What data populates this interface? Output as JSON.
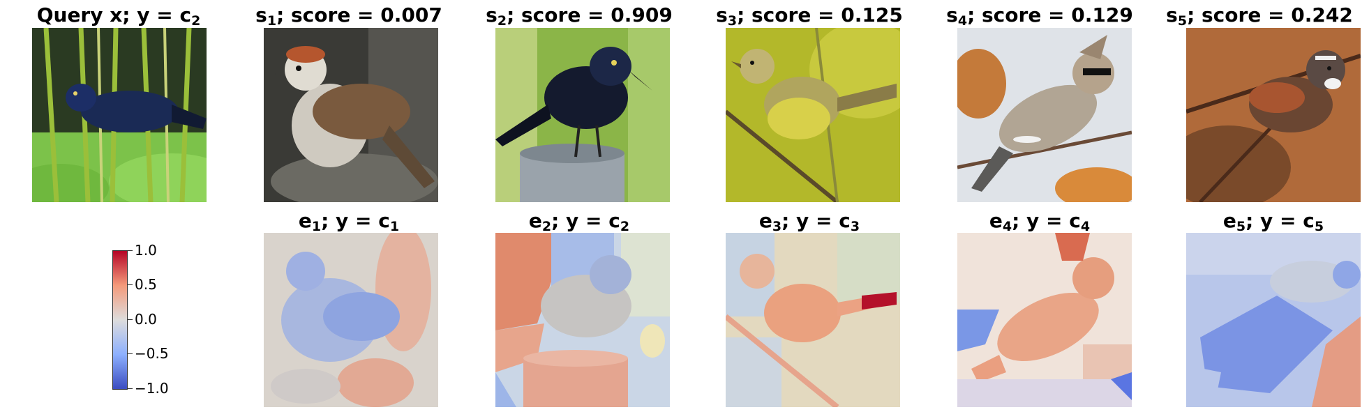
{
  "query": {
    "title_main": "Query x; y = c",
    "title_sub": "2"
  },
  "supports": [
    {
      "pre": "s",
      "sub": "1",
      "post": "; score = 0.007"
    },
    {
      "pre": "s",
      "sub": "2",
      "post": "; score = 0.909"
    },
    {
      "pre": "s",
      "sub": "3",
      "post": "; score = 0.125"
    },
    {
      "pre": "s",
      "sub": "4",
      "post": "; score = 0.129"
    },
    {
      "pre": "s",
      "sub": "5",
      "post": "; score = 0.242"
    }
  ],
  "explanations": [
    {
      "pre": "e",
      "sub": "1",
      "mid": "; y = c",
      "sub2": "1"
    },
    {
      "pre": "e",
      "sub": "2",
      "mid": "; y = c",
      "sub2": "2"
    },
    {
      "pre": "e",
      "sub": "3",
      "mid": "; y = c",
      "sub2": "3"
    },
    {
      "pre": "e",
      "sub": "4",
      "mid": "; y = c",
      "sub2": "4"
    },
    {
      "pre": "e",
      "sub": "5",
      "mid": "; y = c",
      "sub2": "5"
    }
  ],
  "colorbar": {
    "ticks": [
      "1.0",
      "0.5",
      "0.0",
      "−0.5",
      "−1.0"
    ],
    "colormap": [
      "#b40426",
      "#f49a7b",
      "#dddcdc",
      "#8db0fe",
      "#3b4cc0"
    ]
  }
}
